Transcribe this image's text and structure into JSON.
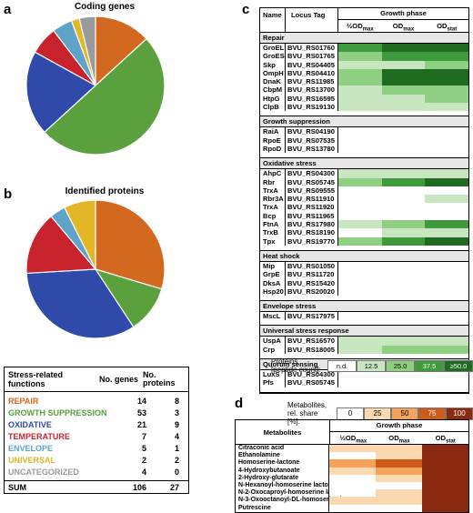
{
  "panel_a": {
    "letter": "a",
    "title": "Coding genes",
    "slices": [
      {
        "name": "REPAIR",
        "value": 14,
        "color": "#d2691e"
      },
      {
        "name": "GROWTH SUPPRESSION",
        "value": 53,
        "color": "#5aa03c"
      },
      {
        "name": "OXIDATIVE",
        "value": 21,
        "color": "#2f4aa8"
      },
      {
        "name": "TEMPERATURE",
        "value": 7,
        "color": "#c8232c"
      },
      {
        "name": "ENVELOPE",
        "value": 5,
        "color": "#5fa3c8"
      },
      {
        "name": "UNIVERSAL",
        "value": 2,
        "color": "#e2b626"
      },
      {
        "name": "UNCATEGORIZED",
        "value": 4,
        "color": "#9a9a9a"
      }
    ]
  },
  "panel_b": {
    "letter": "b",
    "title": "Identified proteins",
    "slices": [
      {
        "name": "REPAIR",
        "value": 8,
        "color": "#d2691e"
      },
      {
        "name": "GROWTH SUPPRESSION",
        "value": 3,
        "color": "#5aa03c"
      },
      {
        "name": "OXIDATIVE",
        "value": 9,
        "color": "#2f4aa8"
      },
      {
        "name": "TEMPERATURE",
        "value": 4,
        "color": "#c8232c"
      },
      {
        "name": "ENVELOPE",
        "value": 1,
        "color": "#5fa3c8"
      },
      {
        "name": "UNIVERSAL",
        "value": 2,
        "color": "#e2b626"
      },
      {
        "name": "UNCATEGORIZED",
        "value": 0,
        "color": "#9a9a9a"
      }
    ]
  },
  "stress_table": {
    "col1": "Stress-related functions",
    "col2": "No. genes",
    "col3": "No. proteins",
    "rows": [
      {
        "label": "REPAIR",
        "genes": "14",
        "proteins": "8",
        "color": "#d2691e"
      },
      {
        "label": "GROWTH SUPPRESSION",
        "genes": "53",
        "proteins": "3",
        "color": "#5aa03c"
      },
      {
        "label": "OXIDATIVE",
        "genes": "21",
        "proteins": "9",
        "color": "#2f4aa8"
      },
      {
        "label": "TEMPERATURE",
        "genes": "7",
        "proteins": "4",
        "color": "#c8232c"
      },
      {
        "label": "ENVELOPE",
        "genes": "5",
        "proteins": "1",
        "color": "#5fa3c8"
      },
      {
        "label": "UNIVERSAL",
        "genes": "2",
        "proteins": "2",
        "color": "#e2b626"
      },
      {
        "label": "UNCATEGORIZED",
        "genes": "4",
        "proteins": "0",
        "color": "#9a9a9a"
      }
    ],
    "sum": {
      "label": "SUM",
      "genes": "106",
      "proteins": "27"
    }
  },
  "panel_c": {
    "letter": "c",
    "col_name": "Name",
    "col_tag": "Locus Tag",
    "growth_phase": "Growth phase",
    "phases": [
      "½OD",
      "OD",
      "OD"
    ],
    "phase_subs": [
      "max",
      "max",
      "stat"
    ],
    "palette": [
      "#ffffff",
      "#c8e6bf",
      "#8fcf82",
      "#3f9a3c",
      "#1f6b22"
    ],
    "groups": [
      {
        "name": "Repair",
        "rows": [
          {
            "name": "GroEL",
            "tag": "BVU_RS01760",
            "v": [
              3,
              4,
              4
            ]
          },
          {
            "name": "GroES",
            "tag": "BVU_RS01765",
            "v": [
              2,
              3,
              3
            ]
          },
          {
            "name": "Skp",
            "tag": "BVU_RS04405",
            "v": [
              1,
              1,
              2
            ]
          },
          {
            "name": "OmpH",
            "tag": "BVU_RS04410",
            "v": [
              2,
              4,
              4
            ]
          },
          {
            "name": "DnaK",
            "tag": "BVU_RS11985",
            "v": [
              2,
              4,
              4
            ]
          },
          {
            "name": "CbpM",
            "tag": "BVU_RS13700",
            "v": [
              1,
              2,
              2
            ]
          },
          {
            "name": "HtpG",
            "tag": "BVU_RS16595",
            "v": [
              1,
              1,
              2
            ]
          },
          {
            "name": "ClpB",
            "tag": "BVU_RS19130",
            "v": [
              1,
              1,
              1
            ]
          }
        ]
      },
      {
        "name": "Growth suppression",
        "rows": [
          {
            "name": "RaiA",
            "tag": "BVU_RS04190",
            "v": [
              0,
              0,
              0
            ]
          },
          {
            "name": "RpoE",
            "tag": "BVU_RS07535",
            "v": [
              0,
              0,
              0
            ]
          },
          {
            "name": "RpoD",
            "tag": "BVU_RS13780",
            "v": [
              0,
              0,
              0
            ]
          }
        ]
      },
      {
        "name": "Oxidative stress",
        "rows": [
          {
            "name": "AhpC",
            "tag": "BVU_RS04300",
            "v": [
              1,
              1,
              1
            ]
          },
          {
            "name": "Rbr",
            "tag": "BVU_RS05745",
            "v": [
              2,
              3,
              4
            ]
          },
          {
            "name": "TrxA",
            "tag": "BVU_RS09555",
            "v": [
              0,
              0,
              0
            ]
          },
          {
            "name": "Rbr3A",
            "tag": "BVU_RS11910",
            "v": [
              0,
              0,
              1
            ]
          },
          {
            "name": "TrxA",
            "tag": "BVU_RS11920",
            "v": [
              0,
              0,
              0
            ]
          },
          {
            "name": "Bcp",
            "tag": "BVU_RS11965",
            "v": [
              0,
              0,
              0
            ]
          },
          {
            "name": "FtnA",
            "tag": "BVU_RS17980",
            "v": [
              1,
              2,
              3
            ]
          },
          {
            "name": "TrxB",
            "tag": "BVU_RS18190",
            "v": [
              0,
              1,
              1
            ]
          },
          {
            "name": "Tpx",
            "tag": "BVU_RS19770",
            "v": [
              2,
              3,
              4
            ]
          }
        ]
      },
      {
        "name": "Heat shock",
        "rows": [
          {
            "name": "Mip",
            "tag": "BVU_RS01050",
            "v": [
              0,
              0,
              0
            ]
          },
          {
            "name": "GrpE",
            "tag": "BVU_RS11720",
            "v": [
              0,
              0,
              0
            ]
          },
          {
            "name": "DksA",
            "tag": "BVU_RS15420",
            "v": [
              0,
              0,
              0
            ]
          },
          {
            "name": "Hsp20",
            "tag": "BVU_RS20020",
            "v": [
              0,
              0,
              0
            ]
          }
        ]
      },
      {
        "name": "Envelope stress",
        "rows": [
          {
            "name": "MscL",
            "tag": "BVU_RS17975",
            "v": [
              0,
              0,
              0
            ]
          }
        ]
      },
      {
        "name": "Universal stress response",
        "rows": [
          {
            "name": "UspA",
            "tag": "BVU_RS16570",
            "v": [
              1,
              1,
              1
            ]
          },
          {
            "name": "Crp",
            "tag": "BVU_RS18005",
            "v": [
              1,
              2,
              2
            ]
          }
        ]
      },
      {
        "name": "Quorum sensing",
        "rows": [
          {
            "name": "LuxS",
            "tag": "BVU_RS04300",
            "v": [
              0,
              0,
              0
            ]
          },
          {
            "name": "Pfs",
            "tag": "BVU_RS05745",
            "v": [
              0,
              0,
              0
            ]
          }
        ]
      }
    ],
    "legend_label": "Proteins [peptide count]:",
    "legend_items": [
      {
        "label": "n.d.",
        "color": "#ffffff"
      },
      {
        "label": "12.5",
        "color": "#c8e6bf"
      },
      {
        "label": "25.0",
        "color": "#8fcf82"
      },
      {
        "label": "37.5",
        "color": "#3f9a3c"
      },
      {
        "label": "≥50.0",
        "color": "#1f6b22"
      }
    ]
  },
  "panel_d": {
    "letter": "d",
    "legend_label": "Metabolites, rel. share [%]:",
    "legend_items": [
      {
        "label": "0",
        "color": "#ffffff"
      },
      {
        "label": "25",
        "color": "#fbd9b0"
      },
      {
        "label": "50",
        "color": "#f3a45a"
      },
      {
        "label": "75",
        "color": "#d0591c"
      },
      {
        "label": "100",
        "color": "#8b2a10"
      }
    ],
    "col_name": "Metabolites",
    "growth_phase": "Growth phase",
    "phases": [
      "½OD",
      "OD",
      "OD"
    ],
    "phase_subs": [
      "max",
      "max",
      "stat"
    ],
    "rows": [
      {
        "name": "Citraconic acid",
        "v": [
          1,
          1,
          4
        ]
      },
      {
        "name": "Ethanolamine",
        "v": [
          0,
          1,
          4
        ]
      },
      {
        "name": "Homoserine-lactone",
        "v": [
          2,
          3,
          4
        ]
      },
      {
        "name": "4-Hydroxybutanoate",
        "v": [
          1,
          2,
          4
        ]
      },
      {
        "name": "2-Hydroxy-glutarate",
        "v": [
          0,
          1,
          4
        ]
      },
      {
        "name": "N-Hexanoyl-homoserine lactone",
        "v": [
          0,
          0,
          4
        ]
      },
      {
        "name": "N-2-Oxocaproyl-homoserine lactone",
        "v": [
          0,
          1,
          4
        ]
      },
      {
        "name": "N-3-Oxooctanoyl-DL-homoserine lactone",
        "v": [
          1,
          1,
          4
        ]
      },
      {
        "name": "Putrescine",
        "v": [
          0,
          0,
          4
        ]
      }
    ]
  }
}
